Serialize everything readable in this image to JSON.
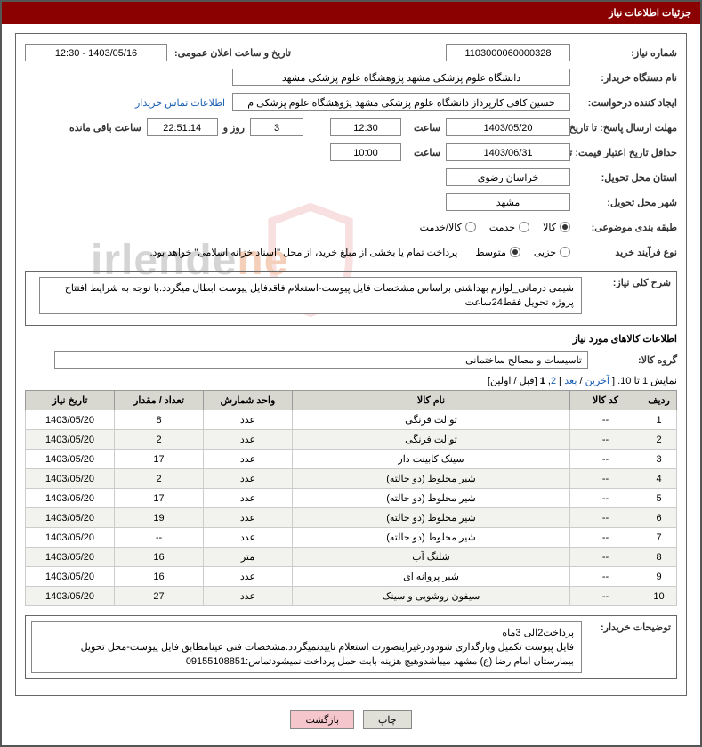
{
  "header": {
    "title": "جزئیات اطلاعات نیاز"
  },
  "labels": {
    "need_no": "شماره نیاز:",
    "announce_dt": "تاریخ و ساعت اعلان عمومی:",
    "buyer_org": "نام دستگاه خریدار:",
    "requester": "ایجاد کننده درخواست:",
    "contact_link": "اطلاعات تماس خریدار",
    "deadline_to": "مهلت ارسال پاسخ: تا تاریخ:",
    "hour": "ساعت",
    "days_and": "روز و",
    "time_remaining": "ساعت باقی مانده",
    "validity_to": "حداقل تاریخ اعتبار قیمت: تا تاریخ:",
    "delivery_province": "استان محل تحویل:",
    "delivery_city": "شهر محل تحویل:",
    "category": "طبقه بندی موضوعی:",
    "purchase_type": "نوع فرآیند خرید",
    "payment_note": "پرداخت تمام یا بخشی از مبلغ خرید، از محل \"اسناد خزانه اسلامی\" خواهد بود.",
    "need_desc": "شرح کلی نیاز:",
    "goods_info": "اطلاعات کالاهای مورد نیاز",
    "goods_group": "گروه کالا:",
    "buyer_notes": "توضیحات خریدار:"
  },
  "fields": {
    "need_no": "1103000060000328",
    "announce_dt": "1403/05/16 - 12:30",
    "buyer_org": "دانشگاه علوم پزشکی مشهد   پژوهشگاه علوم پزشکی مشهد",
    "requester": "حسین کافی کارپرداز دانشگاه علوم پزشکی مشهد   پژوهشگاه علوم پزشکی م",
    "deadline_date": "1403/05/20",
    "deadline_time": "12:30",
    "remaining_days": "3",
    "remaining_time": "22:51:14",
    "validity_date": "1403/06/31",
    "validity_time": "10:00",
    "province": "خراسان رضوی",
    "city": "مشهد",
    "need_desc": "شیمی درمانی_لوازم بهداشتی براساس مشخصات فایل پیوست-استعلام فاقدفایل پیوست ابطال میگردد.با توجه به شرایط افتتاح پروژه تحویل فقط24ساعت",
    "goods_group": "تاسیسات و مصالح ساختمانی",
    "buyer_notes": "پرداخت2الی 3ماه\nفایل پیوست تکمیل وبارگذاری شودودرغیراینصورت استعلام تاییدنمیگردد.مشخصات فنی عینامطابق فایل پیوست-محل تحویل بیمارستان امام رضا (ع) مشهد میباشدوهیچ هزینه بابت حمل پرداخت نمیشودتماس:09155108851"
  },
  "radios": {
    "category": [
      {
        "label": "کالا",
        "checked": true
      },
      {
        "label": "خدمت",
        "checked": false
      },
      {
        "label": "کالا/خدمت",
        "checked": false
      }
    ],
    "ptype": [
      {
        "label": "جزیی",
        "checked": false
      },
      {
        "label": "متوسط",
        "checked": true
      }
    ]
  },
  "pager": {
    "text_prefix": "نمایش 1 تا 10. [ ",
    "last": "آخرین",
    "sep1": " / ",
    "next": "بعد",
    "sep2": " ] ",
    "page2": "2",
    "comma": ", ",
    "page1": "1",
    "sep3": " [",
    "prev": "قبل",
    "sep4": " / ",
    "first": "اولین",
    "close": "]"
  },
  "table": {
    "headers": {
      "idx": "ردیف",
      "code": "کد کالا",
      "name": "نام کالا",
      "unit": "واحد شمارش",
      "qty": "تعداد / مقدار",
      "date": "تاریخ نیاز"
    },
    "rows": [
      {
        "idx": "1",
        "code": "--",
        "name": "توالت فرنگی",
        "unit": "عدد",
        "qty": "8",
        "date": "1403/05/20"
      },
      {
        "idx": "2",
        "code": "--",
        "name": "توالت فرنگی",
        "unit": "عدد",
        "qty": "2",
        "date": "1403/05/20"
      },
      {
        "idx": "3",
        "code": "--",
        "name": "سینک کابینت دار",
        "unit": "عدد",
        "qty": "17",
        "date": "1403/05/20"
      },
      {
        "idx": "4",
        "code": "--",
        "name": "شیر مخلوط (دو حالته)",
        "unit": "عدد",
        "qty": "2",
        "date": "1403/05/20"
      },
      {
        "idx": "5",
        "code": "--",
        "name": "شیر مخلوط (دو حالته)",
        "unit": "عدد",
        "qty": "17",
        "date": "1403/05/20"
      },
      {
        "idx": "6",
        "code": "--",
        "name": "شیر مخلوط (دو حالته)",
        "unit": "عدد",
        "qty": "19",
        "date": "1403/05/20"
      },
      {
        "idx": "7",
        "code": "--",
        "name": "شیر مخلوط (دو حالته)",
        "unit": "عدد",
        "qty": "--",
        "date": "1403/05/20"
      },
      {
        "idx": "8",
        "code": "--",
        "name": "شلنگ آب",
        "unit": "متر",
        "qty": "16",
        "date": "1403/05/20"
      },
      {
        "idx": "9",
        "code": "--",
        "name": "شیر پروانه ای",
        "unit": "عدد",
        "qty": "16",
        "date": "1403/05/20"
      },
      {
        "idx": "10",
        "code": "--",
        "name": "سیفون روشویی و سینک",
        "unit": "عدد",
        "qty": "27",
        "date": "1403/05/20"
      }
    ]
  },
  "buttons": {
    "print": "چاپ",
    "back": "بازگشت"
  },
  "watermark": {
    "text1": "irlende",
    "text2": "ne"
  },
  "colors": {
    "header_bg": "#8b0000",
    "link": "#1a5fb4",
    "th_bg": "#d8d8d0",
    "shield": "#d9534f"
  }
}
